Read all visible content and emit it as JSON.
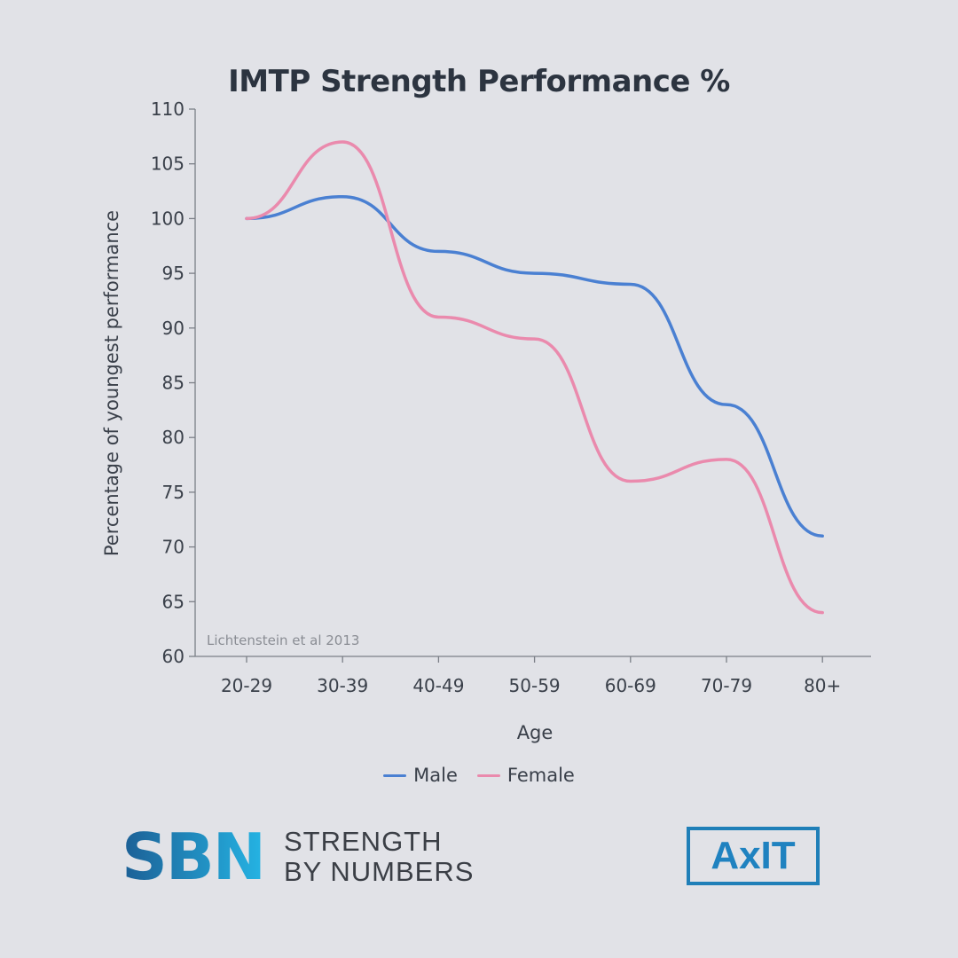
{
  "chart_data": {
    "type": "line",
    "title": "IMTP Strength Performance %",
    "xlabel": "Age",
    "ylabel": "Percentage of youngest performance",
    "categories": [
      "20-29",
      "30-39",
      "40-49",
      "50-59",
      "60-69",
      "70-79",
      "80+"
    ],
    "ylim": [
      60,
      110
    ],
    "yticks": [
      60,
      65,
      70,
      75,
      80,
      85,
      90,
      95,
      100,
      105,
      110
    ],
    "grid": false,
    "legend": "bottom",
    "annotation": "Lichtenstein et al 2013",
    "series": [
      {
        "name": "Male",
        "color": "#4a80d2",
        "values": [
          100,
          102,
          97,
          95,
          94,
          83,
          71
        ]
      },
      {
        "name": "Female",
        "color": "#ea8aad",
        "values": [
          100,
          107,
          91,
          89,
          76,
          78,
          64
        ]
      }
    ]
  },
  "branding": {
    "sbn_mark": "SBN",
    "sbn_line1": "STRENGTH",
    "sbn_line2": "BY NUMBERS",
    "axit": "AxIT"
  }
}
